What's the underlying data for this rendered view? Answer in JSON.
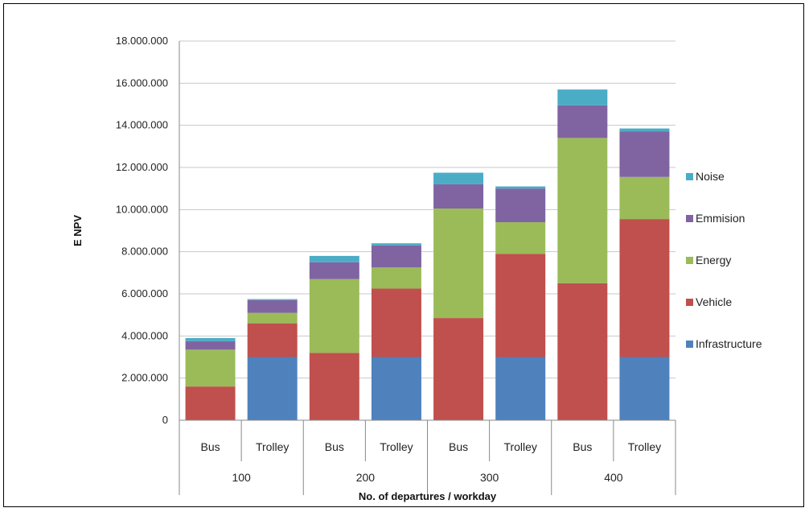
{
  "chart_data": {
    "type": "bar",
    "stacked": true,
    "xlabel": "No. of departures / workday",
    "ylabel": "E NPV",
    "ylim": [
      0,
      18000000
    ],
    "y_ticks": [
      0,
      2000000,
      4000000,
      6000000,
      8000000,
      10000000,
      12000000,
      14000000,
      16000000,
      18000000
    ],
    "y_tick_labels": [
      "0",
      "2.000.000",
      "4.000.000",
      "6.000.000",
      "8.000.000",
      "10.000.000",
      "12.000.000",
      "14.000.000",
      "16.000.000",
      "18.000.000"
    ],
    "grid": true,
    "legend_position": "right",
    "groups": [
      "100",
      "200",
      "300",
      "400"
    ],
    "categories": [
      "Bus",
      "Trolley",
      "Bus",
      "Trolley",
      "Bus",
      "Trolley",
      "Bus",
      "Trolley"
    ],
    "series": [
      {
        "name": "Infrastructure",
        "color": "#4f81bd",
        "values": [
          0,
          3000000,
          0,
          3000000,
          0,
          3000000,
          0,
          3000000
        ]
      },
      {
        "name": "Vehicle",
        "color": "#c0504d",
        "values": [
          1600000,
          1600000,
          3200000,
          3250000,
          4850000,
          4900000,
          6500000,
          6550000
        ]
      },
      {
        "name": "Energy",
        "color": "#9bbb59",
        "values": [
          1750000,
          500000,
          3500000,
          1000000,
          5200000,
          1500000,
          6900000,
          2000000
        ]
      },
      {
        "name": "Emmision",
        "color": "#8064a2",
        "values": [
          400000,
          600000,
          800000,
          1050000,
          1150000,
          1600000,
          1550000,
          2150000
        ]
      },
      {
        "name": "Noise",
        "color": "#4bacc6",
        "values": [
          150000,
          50000,
          300000,
          100000,
          550000,
          100000,
          750000,
          150000
        ]
      }
    ]
  }
}
